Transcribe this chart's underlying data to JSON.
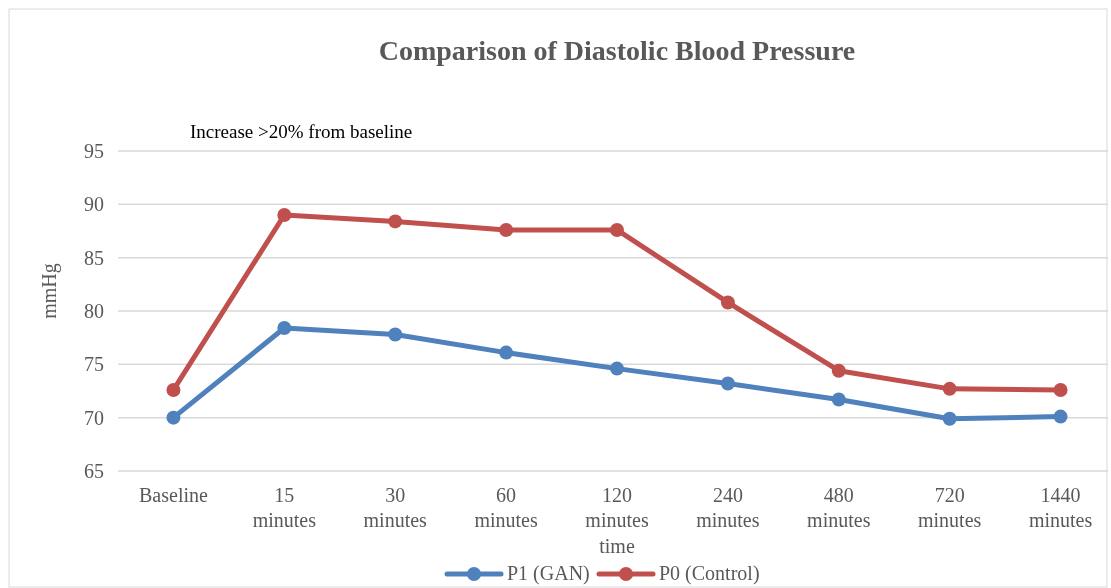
{
  "chart_data": {
    "type": "line",
    "title": "Comparison of Diastolic Blood Pressure",
    "xlabel": "time",
    "ylabel": "mmHg",
    "annotations": [
      "Increase >20% from baseline"
    ],
    "categories": [
      "Baseline",
      "15 minutes",
      "30 minutes",
      "60 minutes",
      "120 minutes",
      "240 minutes",
      "480 minutes",
      "720 minutes",
      "1440 minutes"
    ],
    "series": [
      {
        "name": "P1 (GAN)",
        "color": "#4f81bd",
        "values": [
          70.0,
          78.4,
          77.8,
          76.1,
          74.6,
          73.2,
          71.7,
          69.9,
          70.1
        ]
      },
      {
        "name": "P0 (Control)",
        "color": "#c0504d",
        "values": [
          72.6,
          89.0,
          88.4,
          87.6,
          87.6,
          80.8,
          74.4,
          72.7,
          72.6
        ]
      }
    ],
    "ylim": [
      65,
      95
    ],
    "yticks": [
      65,
      70,
      75,
      80,
      85,
      90,
      95
    ],
    "grid": "y",
    "legend": "bottom",
    "marker": "circle",
    "line_style": "solid"
  }
}
